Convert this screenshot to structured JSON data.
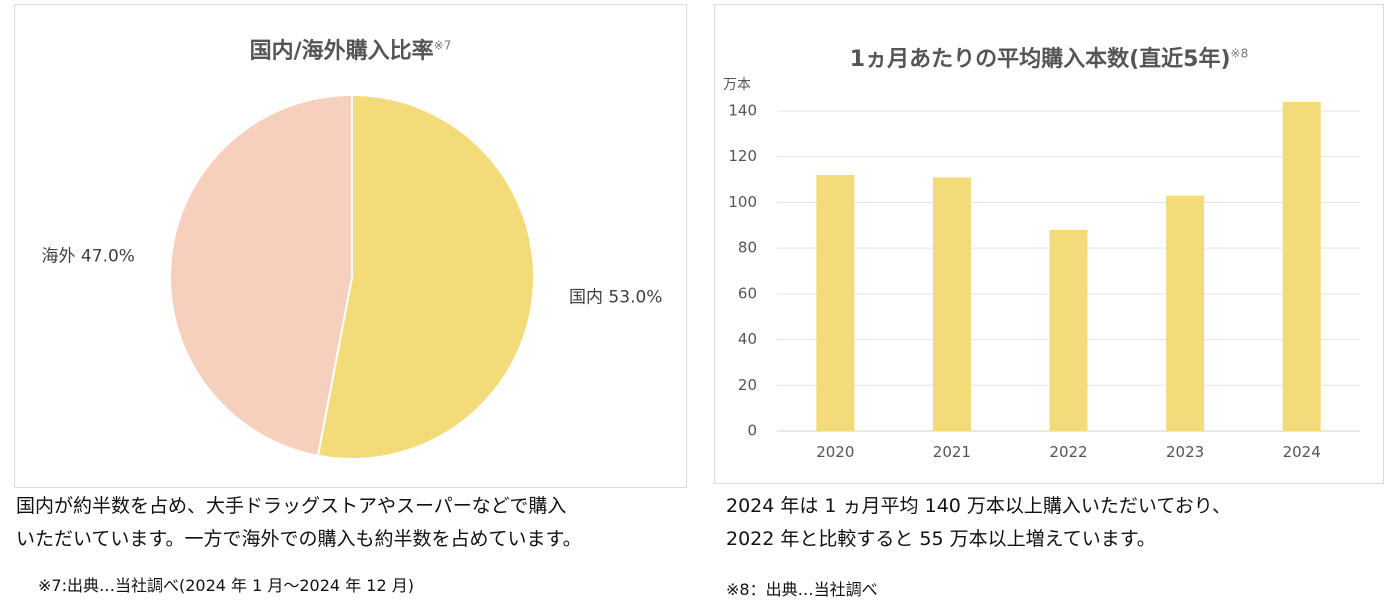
{
  "pie": {
    "title": "国内/海外購入比率",
    "title_note": "※7",
    "colors": [
      "#f4db7a",
      "#f7cfbd"
    ],
    "caption_lines": [
      "国内が約半数を占め、大手ドラッグストアやスーパーなどで購入",
      "いただいています。一方で海外での購入も約半数を占めています。"
    ],
    "footnote": "※7:出典…当社調べ(2024 年 1 月～2024 年 12 月)"
  },
  "bar": {
    "title": "1ヵ月あたりの平均購入本数(直近5年)",
    "title_note": "※8",
    "unit_label": "万本",
    "bar_color": "#f4db7a",
    "caption_lines": [
      "2024 年は 1 ヵ月平均 140 万本以上購入いただいており、",
      "2022 年と比較すると 55 万本以上増えています。"
    ],
    "footnote": "※8：出典…当社調べ"
  },
  "chart_data": [
    {
      "type": "pie",
      "title": "国内/海外購入比率",
      "categories": [
        "国内",
        "海外"
      ],
      "values": [
        53.0,
        47.0
      ],
      "labels": [
        "国内 53.0%",
        "海外 47.0%"
      ],
      "colors": [
        "#f4db7a",
        "#f7cfbd"
      ]
    },
    {
      "type": "bar",
      "title": "1ヵ月あたりの平均購入本数(直近5年)",
      "ylabel": "万本",
      "xlabel": "",
      "categories": [
        "2020",
        "2021",
        "2022",
        "2023",
        "2024"
      ],
      "values": [
        112,
        111,
        88,
        103,
        144
      ],
      "ylim": [
        0,
        140
      ],
      "yticks": [
        "0",
        "20",
        "40",
        "60",
        "80",
        "100",
        "120",
        "140"
      ],
      "grid": true
    }
  ]
}
